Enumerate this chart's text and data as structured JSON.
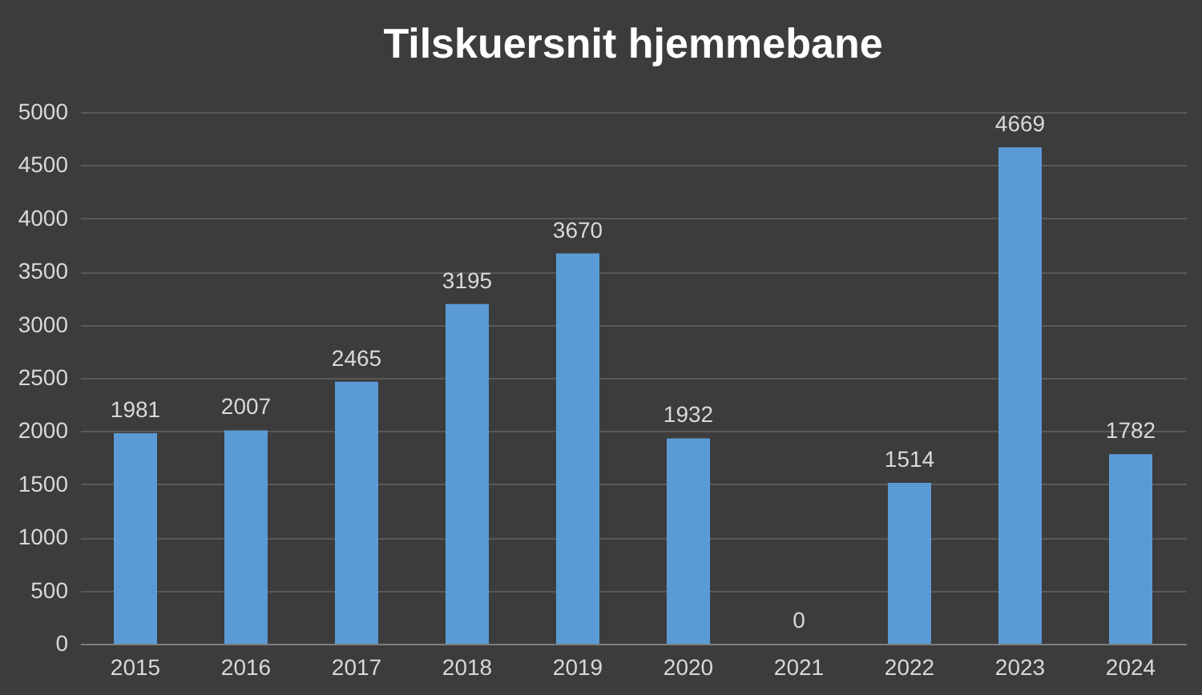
{
  "chart_data": {
    "type": "bar",
    "title": "Tilskuersnit hjemmebane",
    "categories": [
      "2015",
      "2016",
      "2017",
      "2018",
      "2019",
      "2020",
      "2021",
      "2022",
      "2023",
      "2024"
    ],
    "values": [
      1981,
      2007,
      2465,
      3195,
      3670,
      1932,
      0,
      1514,
      4669,
      1782
    ],
    "color": "#5b9bd5",
    "ylim": [
      0,
      5000
    ],
    "yticks": [
      0,
      500,
      1000,
      1500,
      2000,
      2500,
      3000,
      3500,
      4000,
      4500,
      5000
    ],
    "grid": "y",
    "data_labels": true
  }
}
